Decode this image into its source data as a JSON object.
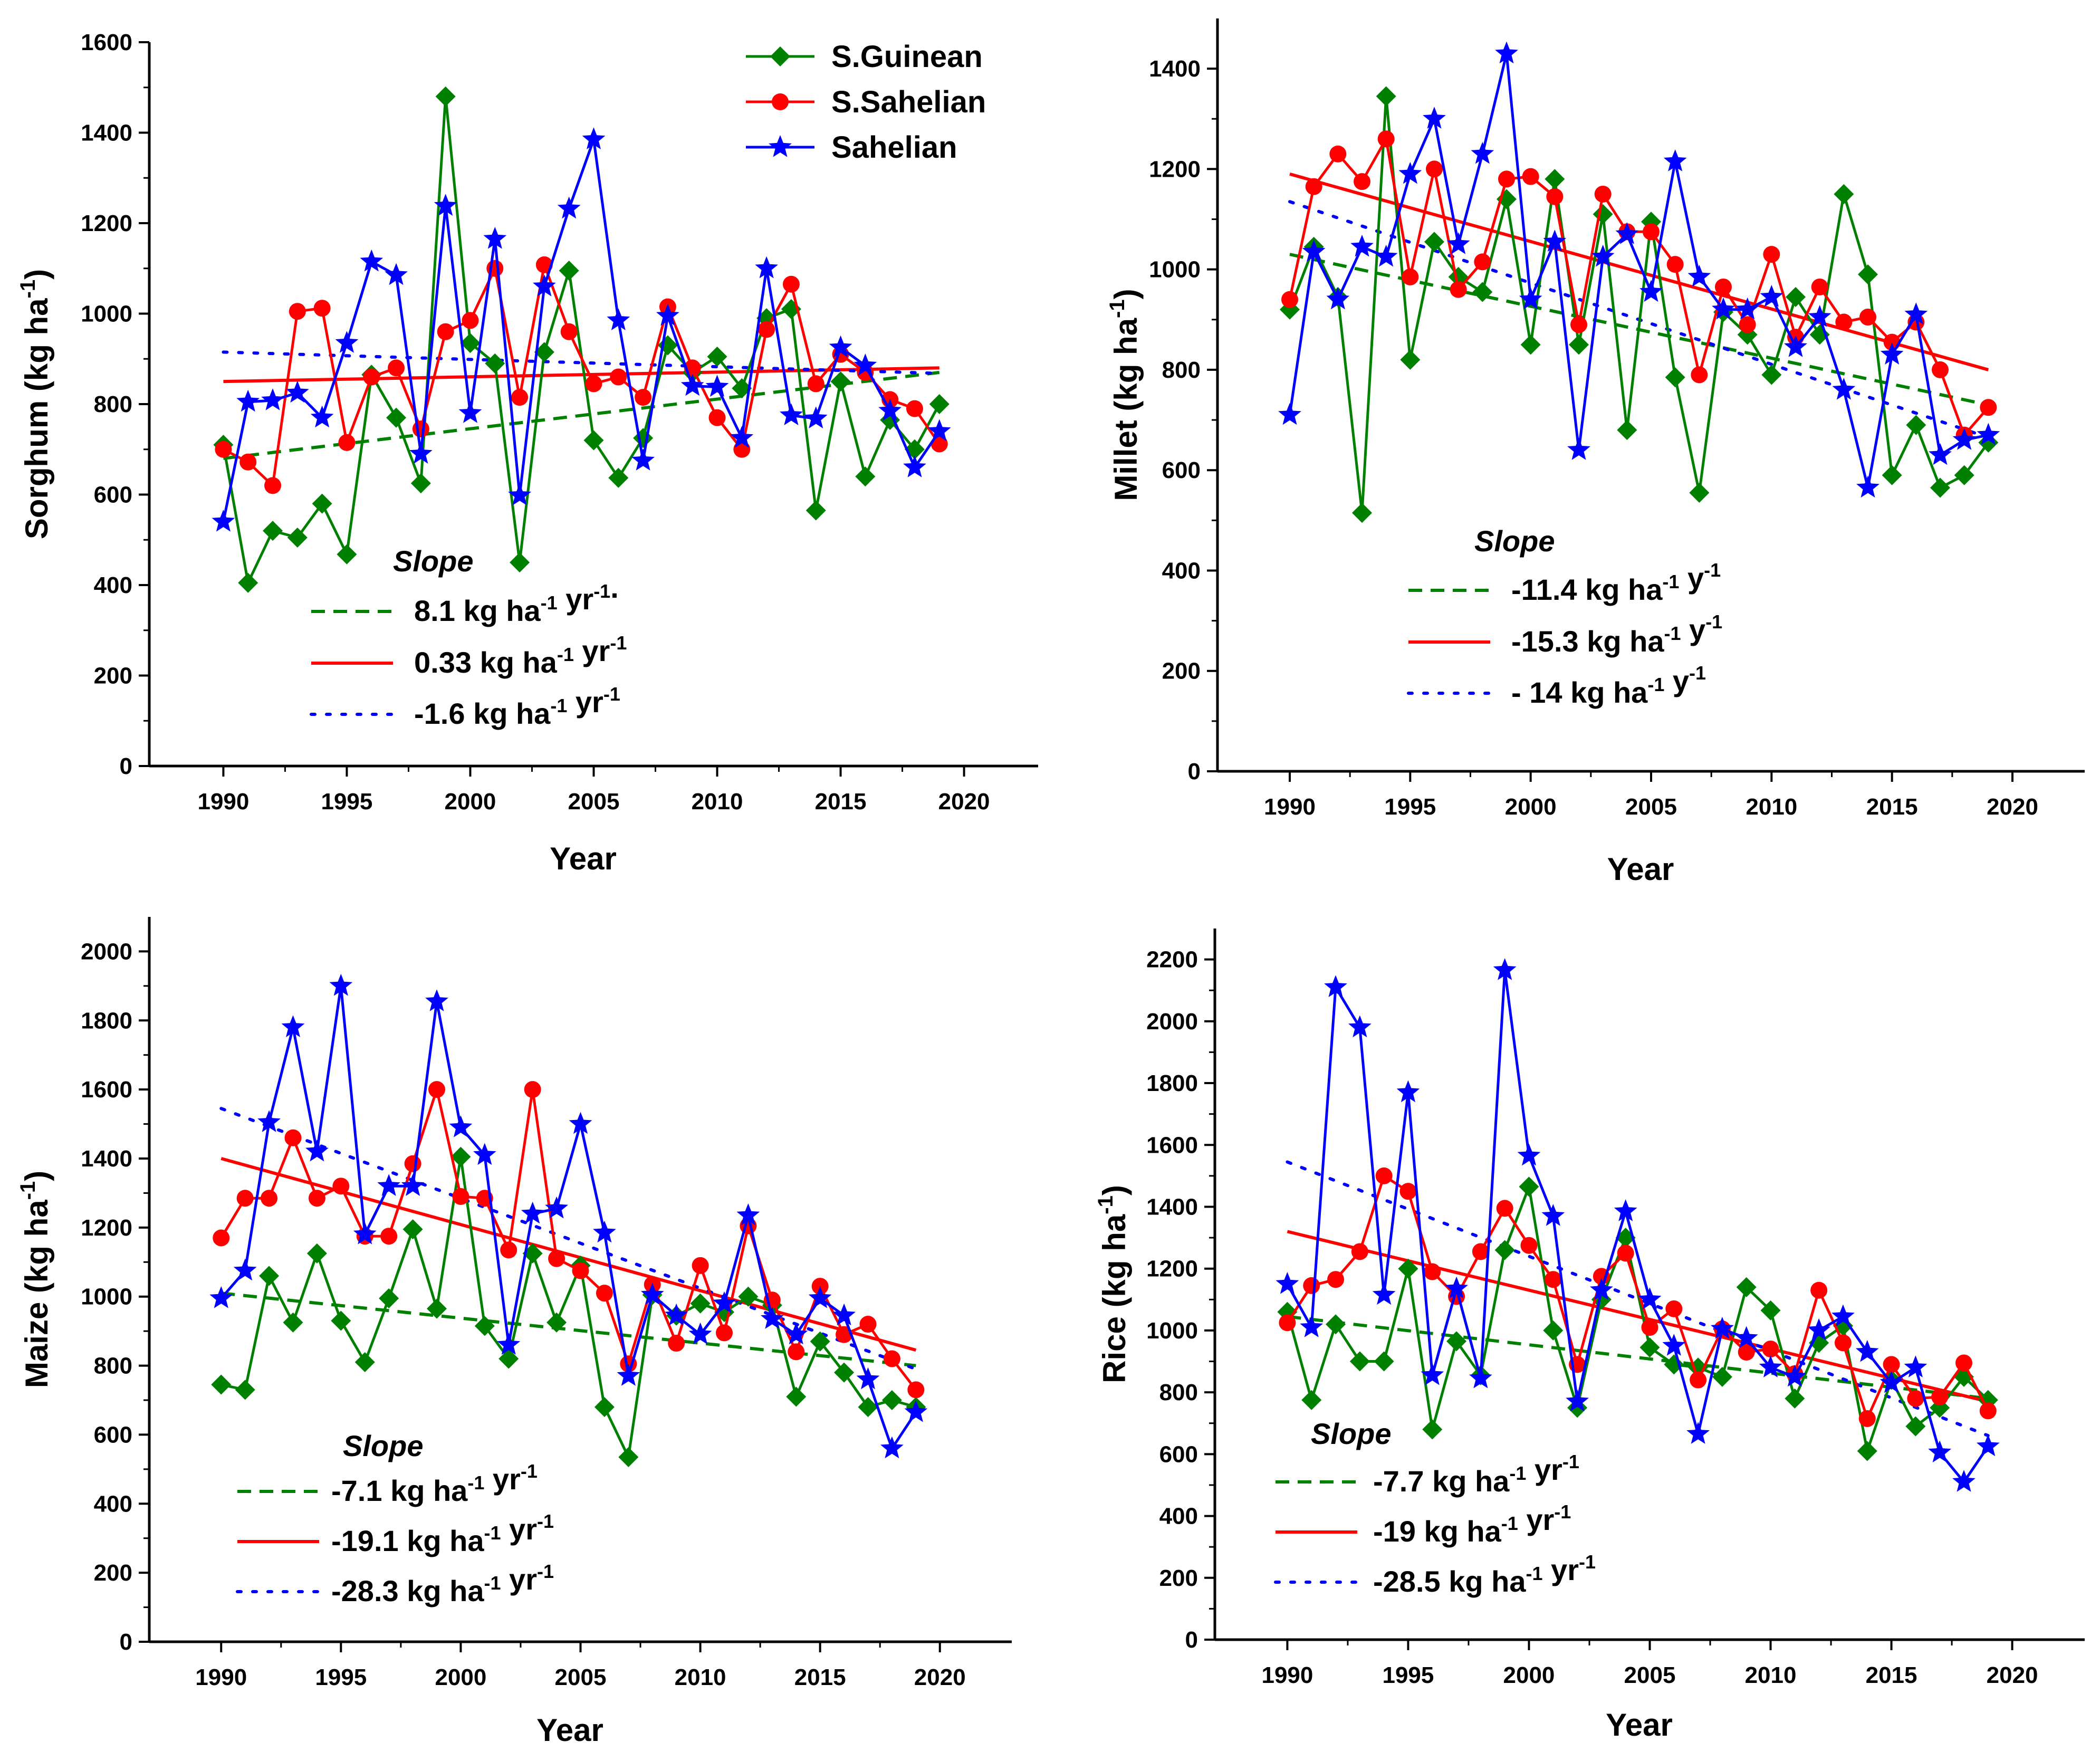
{
  "chart_data": [
    {
      "id": "sorghum",
      "type": "line",
      "ylabel_main": "Sorghum (kg ha",
      "ylabel_sup": "-1",
      "ylabel_end": ")",
      "xlabel": "Year",
      "xlim": [
        1987,
        2023
      ],
      "ylim": [
        0,
        1600
      ],
      "xticks": [
        1990,
        1995,
        2000,
        2005,
        2010,
        2015,
        2020
      ],
      "yticks": [
        0,
        200,
        400,
        600,
        800,
        1000,
        1200,
        1400,
        1600
      ],
      "slope_heading": "Slope",
      "show_legend": true,
      "years": [
        1990,
        1991,
        1992,
        1993,
        1994,
        1995,
        1996,
        1997,
        1998,
        1999,
        2000,
        2001,
        2002,
        2003,
        2004,
        2005,
        2006,
        2007,
        2008,
        2009,
        2010,
        2011,
        2012,
        2013,
        2014,
        2015,
        2016,
        2017,
        2018,
        2019
      ],
      "series": [
        {
          "name": "S.Guinean",
          "color": "#008000",
          "marker": "diamond",
          "values": [
            710,
            405,
            520,
            505,
            580,
            468,
            865,
            770,
            625,
            1480,
            935,
            890,
            450,
            915,
            1095,
            720,
            637,
            725,
            930,
            870,
            905,
            835,
            990,
            1010,
            565,
            850,
            640,
            765,
            700,
            800
          ],
          "trend": {
            "start": 680,
            "end": 870,
            "style": "dashed"
          },
          "slope": {
            "num": "8.1",
            "a": "kg ha",
            "e1": "-1",
            "b": "yr",
            "e2": "-1",
            "tail": "."
          }
        },
        {
          "name": "S.Sahelian",
          "color": "#ff0000",
          "marker": "circle",
          "values": [
            700,
            672,
            620,
            1005,
            1012,
            715,
            860,
            880,
            745,
            960,
            985,
            1100,
            815,
            1108,
            960,
            845,
            860,
            815,
            1015,
            880,
            770,
            700,
            965,
            1065,
            845,
            910,
            870,
            810,
            790,
            712
          ],
          "trend": {
            "start": 850,
            "end": 880,
            "style": "solid"
          },
          "slope": {
            "num": "0.33",
            "a": "kg ha",
            "e1": "-1",
            "b": "yr",
            "e2": "-1",
            "tail": ""
          }
        },
        {
          "name": "Sahelian",
          "color": "#0000ff",
          "marker": "star",
          "values": [
            540,
            805,
            808,
            825,
            770,
            935,
            1115,
            1085,
            690,
            1238,
            780,
            1165,
            598,
            1060,
            1232,
            1385,
            985,
            675,
            995,
            840,
            838,
            725,
            1100,
            775,
            768,
            925,
            885,
            785,
            660,
            740
          ],
          "trend": {
            "start": 915,
            "end": 868,
            "style": "dotted"
          },
          "slope": {
            "num": "-1.6",
            "a": "kg ha",
            "e1": "-1",
            "b": "yr",
            "e2": "-1",
            "tail": ""
          }
        }
      ]
    },
    {
      "id": "millet",
      "type": "line",
      "ylabel_main": "Millet (kg ha",
      "ylabel_sup": "-1",
      "ylabel_end": ")",
      "xlabel": "Year",
      "xlim": [
        1987,
        2023
      ],
      "ylim": [
        0,
        1500
      ],
      "xticks": [
        1990,
        1995,
        2000,
        2005,
        2010,
        2015,
        2020
      ],
      "yticks": [
        0,
        200,
        400,
        600,
        800,
        1000,
        1200,
        1400
      ],
      "slope_heading": "Slope",
      "show_legend": false,
      "years": [
        1990,
        1991,
        1992,
        1993,
        1994,
        1995,
        1996,
        1997,
        1998,
        1999,
        2000,
        2001,
        2002,
        2003,
        2004,
        2005,
        2006,
        2007,
        2008,
        2009,
        2010,
        2011,
        2012,
        2013,
        2014,
        2015,
        2016,
        2017,
        2018,
        2019
      ],
      "series": [
        {
          "name": "S.Guinean",
          "color": "#008000",
          "marker": "diamond",
          "values": [
            920,
            1045,
            945,
            515,
            1345,
            820,
            1055,
            985,
            955,
            1140,
            850,
            1180,
            850,
            1110,
            680,
            1095,
            785,
            555,
            915,
            870,
            790,
            945,
            870,
            1150,
            990,
            590,
            690,
            565,
            590,
            655
          ],
          "trend": {
            "start": 1030,
            "end": 730,
            "style": "dashed"
          },
          "slope": {
            "num": "-11.4",
            "a": "kg ha",
            "e1": "-1",
            "b": "y",
            "e2": "-1",
            "tail": ""
          }
        },
        {
          "name": "S.Sahelian",
          "color": "#ff0000",
          "marker": "circle",
          "values": [
            940,
            1165,
            1230,
            1175,
            1260,
            985,
            1200,
            960,
            1015,
            1180,
            1185,
            1145,
            890,
            1150,
            1075,
            1075,
            1010,
            790,
            965,
            890,
            1030,
            865,
            965,
            895,
            905,
            855,
            895,
            800,
            670,
            725
          ],
          "trend": {
            "start": 1190,
            "end": 800,
            "style": "solid"
          },
          "slope": {
            "num": "-15.3",
            "a": "kg ha",
            "e1": "-1",
            "b": "y",
            "e2": "-1",
            "tail": ""
          }
        },
        {
          "name": "Sahelian",
          "color": "#0000ff",
          "marker": "star",
          "values": [
            710,
            1035,
            940,
            1045,
            1025,
            1190,
            1300,
            1050,
            1230,
            1430,
            940,
            1055,
            640,
            1025,
            1070,
            955,
            1215,
            985,
            920,
            920,
            945,
            845,
            905,
            760,
            565,
            830,
            910,
            630,
            660,
            670
          ],
          "trend": {
            "start": 1135,
            "end": 665,
            "style": "dotted"
          },
          "slope": {
            "num": "- 14",
            "a": "kg ha",
            "e1": "-1",
            "b": "y",
            "e2": "-1",
            "tail": ""
          }
        }
      ]
    },
    {
      "id": "maize",
      "type": "line",
      "ylabel_main": "Maize (kg ha",
      "ylabel_sup": "-1",
      "ylabel_end": ")",
      "xlabel": "Year",
      "xlim": [
        1987,
        2023
      ],
      "ylim": [
        0,
        2100
      ],
      "xticks": [
        1990,
        1995,
        2000,
        2005,
        2010,
        2015,
        2020
      ],
      "yticks": [
        0,
        200,
        400,
        600,
        800,
        1000,
        1200,
        1400,
        1600,
        1800,
        2000
      ],
      "slope_heading": "Slope",
      "show_legend": false,
      "years": [
        1990,
        1991,
        1992,
        1993,
        1994,
        1995,
        1996,
        1997,
        1998,
        1999,
        2000,
        2001,
        2002,
        2003,
        2004,
        2005,
        2006,
        2007,
        2008,
        2009,
        2010,
        2011,
        2012,
        2013,
        2014,
        2015,
        2016,
        2017,
        2018,
        2019
      ],
      "series": [
        {
          "name": "S.Guinean",
          "color": "#008000",
          "marker": "diamond",
          "values": [
            745,
            730,
            1060,
            925,
            1125,
            930,
            810,
            995,
            1195,
            965,
            1405,
            915,
            820,
            1125,
            925,
            1090,
            680,
            535,
            1005,
            945,
            980,
            955,
            1000,
            975,
            710,
            870,
            780,
            680,
            700,
            680
          ],
          "trend": {
            "start": 1010,
            "end": 800,
            "style": "dashed"
          },
          "slope": {
            "num": "-7.1",
            "a": "kg ha",
            "e1": "-1",
            "b": "yr",
            "e2": "-1",
            "tail": ""
          }
        },
        {
          "name": "S.Sahelian",
          "color": "#ff0000",
          "marker": "circle",
          "values": [
            1170,
            1285,
            1285,
            1460,
            1285,
            1320,
            1175,
            1175,
            1385,
            1600,
            1290,
            1285,
            1135,
            1600,
            1110,
            1075,
            1010,
            805,
            1035,
            865,
            1090,
            895,
            1205,
            990,
            840,
            1030,
            890,
            920,
            820,
            730
          ],
          "trend": {
            "start": 1400,
            "end": 845,
            "style": "solid"
          },
          "slope": {
            "num": "-19.1",
            "a": "kg ha",
            "e1": "-1",
            "b": "yr",
            "e2": "-1",
            "tail": ""
          }
        },
        {
          "name": "Sahelian",
          "color": "#0000ff",
          "marker": "star",
          "values": [
            995,
            1075,
            1505,
            1780,
            1420,
            1900,
            1180,
            1320,
            1320,
            1855,
            1490,
            1410,
            860,
            1240,
            1255,
            1500,
            1185,
            770,
            1005,
            945,
            890,
            980,
            1235,
            935,
            890,
            995,
            945,
            760,
            560,
            665
          ],
          "trend": {
            "start": 1545,
            "end": 790,
            "style": "dotted"
          },
          "slope": {
            "num": "-28.3",
            "a": "kg ha",
            "e1": "-1",
            "b": "yr",
            "e2": "-1",
            "tail": ""
          }
        }
      ]
    },
    {
      "id": "rice",
      "type": "line",
      "ylabel_main": "Rice (kg ha",
      "ylabel_sup": "-1",
      "ylabel_end": ")",
      "xlabel": "Year",
      "xlim": [
        1987,
        2023
      ],
      "ylim": [
        0,
        2300
      ],
      "xticks": [
        1990,
        1995,
        2000,
        2005,
        2010,
        2015,
        2020
      ],
      "yticks": [
        0,
        200,
        400,
        600,
        800,
        1000,
        1200,
        1400,
        1600,
        1800,
        2000,
        2200
      ],
      "slope_heading": "Slope",
      "show_legend": false,
      "years": [
        1990,
        1991,
        1992,
        1993,
        1994,
        1995,
        1996,
        1997,
        1998,
        1999,
        2000,
        2001,
        2002,
        2003,
        2004,
        2005,
        2006,
        2007,
        2008,
        2009,
        2010,
        2011,
        2012,
        2013,
        2014,
        2015,
        2016,
        2017,
        2018,
        2019
      ],
      "series": [
        {
          "name": "S.Guinean",
          "color": "#008000",
          "marker": "diamond",
          "values": [
            1060,
            775,
            1020,
            900,
            900,
            1200,
            680,
            965,
            855,
            1260,
            1465,
            1000,
            750,
            1100,
            1300,
            945,
            890,
            880,
            850,
            1140,
            1065,
            780,
            960,
            1015,
            610,
            840,
            690,
            750,
            850,
            775
          ],
          "trend": {
            "start": 1045,
            "end": 780,
            "style": "dashed"
          },
          "slope": {
            "num": "-7.7",
            "a": "kg ha",
            "e1": "-1",
            "b": "yr",
            "e2": "-1",
            "tail": ""
          }
        },
        {
          "name": "S.Sahelian",
          "color": "#ff0000",
          "marker": "circle",
          "values": [
            1025,
            1145,
            1165,
            1255,
            1500,
            1450,
            1190,
            1110,
            1255,
            1395,
            1275,
            1165,
            890,
            1175,
            1250,
            1010,
            1070,
            840,
            1005,
            930,
            940,
            860,
            1130,
            960,
            715,
            890,
            780,
            785,
            895,
            740
          ],
          "trend": {
            "start": 1320,
            "end": 770,
            "style": "solid"
          },
          "slope": {
            "num": "-19",
            "a": "kg ha",
            "e1": "-1",
            "b": "yr",
            "e2": "-1",
            "tail": ""
          }
        },
        {
          "name": "Sahelian",
          "color": "#0000ff",
          "marker": "star",
          "values": [
            1150,
            1010,
            2110,
            1980,
            1115,
            1770,
            855,
            1135,
            845,
            2165,
            1565,
            1370,
            770,
            1130,
            1385,
            1100,
            950,
            665,
            1005,
            975,
            880,
            850,
            1000,
            1045,
            930,
            830,
            880,
            605,
            510,
            625
          ],
          "trend": {
            "start": 1545,
            "end": 660,
            "style": "dotted"
          },
          "slope": {
            "num": "-28.5",
            "a": "kg ha",
            "e1": "-1",
            "b": "yr",
            "e2": "-1",
            "tail": ""
          }
        }
      ]
    }
  ]
}
